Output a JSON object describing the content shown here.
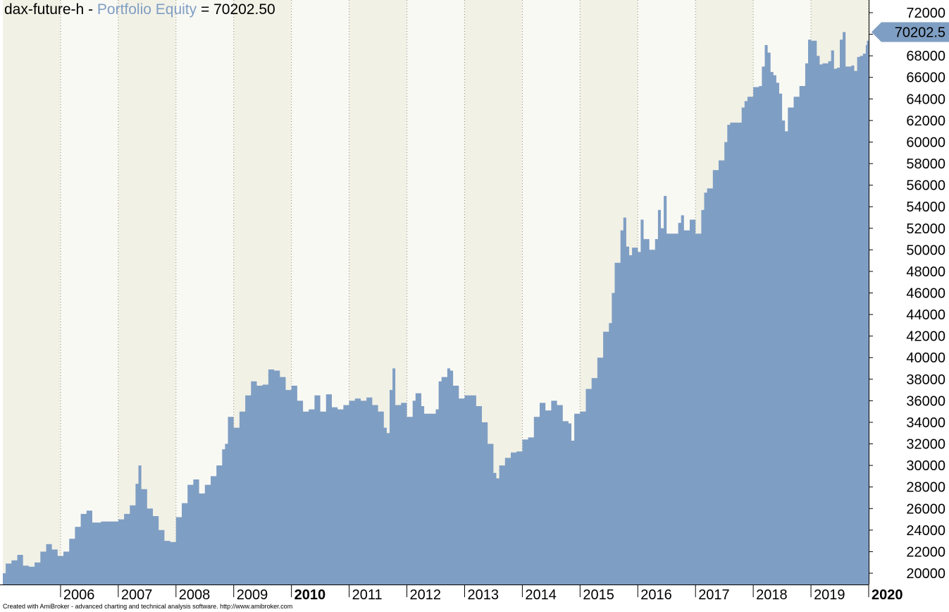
{
  "title": {
    "symbol": "dax-future-h",
    "sep": " - ",
    "series_label": "Portfolio Equity",
    "equals": " = ",
    "value": "70202.50"
  },
  "footer": "Created with AmiBroker - advanced charting and technical analysis software. http://www.amibroker.com",
  "colors": {
    "area": "#7f9ec3",
    "band_odd": "#f2f1e6",
    "band_even": "#f9f9f4",
    "axis_bg": "#ffffff"
  },
  "chart_data": {
    "type": "area",
    "series": [
      {
        "name": "Portfolio Equity",
        "last_label": "70202.5"
      }
    ],
    "ylim": [
      19000,
      73000
    ],
    "yticks": [
      20000,
      22000,
      24000,
      26000,
      28000,
      30000,
      32000,
      34000,
      36000,
      38000,
      40000,
      42000,
      44000,
      46000,
      48000,
      50000,
      52000,
      54000,
      56000,
      58000,
      60000,
      62000,
      64000,
      66000,
      68000,
      70000,
      72000
    ],
    "xlim": [
      2005.0,
      2020.0
    ],
    "xticks": [
      {
        "label": "2006",
        "x": 2006,
        "major": false
      },
      {
        "label": "2007",
        "x": 2007,
        "major": false
      },
      {
        "label": "2008",
        "x": 2008,
        "major": false
      },
      {
        "label": "2009",
        "x": 2009,
        "major": false
      },
      {
        "label": "2010",
        "x": 2010,
        "major": true
      },
      {
        "label": "2011",
        "x": 2011,
        "major": false
      },
      {
        "label": "2012",
        "x": 2012,
        "major": false
      },
      {
        "label": "2013",
        "x": 2013,
        "major": false
      },
      {
        "label": "2014",
        "x": 2014,
        "major": false
      },
      {
        "label": "2015",
        "x": 2015,
        "major": false
      },
      {
        "label": "2016",
        "x": 2016,
        "major": false
      },
      {
        "label": "2017",
        "x": 2017,
        "major": false
      },
      {
        "label": "2018",
        "x": 2018,
        "major": false
      },
      {
        "label": "2019",
        "x": 2019,
        "major": false
      },
      {
        "label": "2020",
        "x": 2020,
        "major": true
      }
    ],
    "points": [
      [
        2005.0,
        20000
      ],
      [
        2005.05,
        20900
      ],
      [
        2005.15,
        21200
      ],
      [
        2005.25,
        21700
      ],
      [
        2005.35,
        20700
      ],
      [
        2005.45,
        20600
      ],
      [
        2005.55,
        21000
      ],
      [
        2005.65,
        22000
      ],
      [
        2005.75,
        22700
      ],
      [
        2005.85,
        22200
      ],
      [
        2005.95,
        21600
      ],
      [
        2006.05,
        22000
      ],
      [
        2006.15,
        23200
      ],
      [
        2006.25,
        24300
      ],
      [
        2006.35,
        25500
      ],
      [
        2006.45,
        25800
      ],
      [
        2006.55,
        24700
      ],
      [
        2006.7,
        24800
      ],
      [
        2006.85,
        24800
      ],
      [
        2007.0,
        25000
      ],
      [
        2007.1,
        25500
      ],
      [
        2007.2,
        26300
      ],
      [
        2007.3,
        28300
      ],
      [
        2007.35,
        30000
      ],
      [
        2007.4,
        27800
      ],
      [
        2007.5,
        26000
      ],
      [
        2007.6,
        25300
      ],
      [
        2007.7,
        24000
      ],
      [
        2007.8,
        23000
      ],
      [
        2007.9,
        22900
      ],
      [
        2008.0,
        25200
      ],
      [
        2008.1,
        26500
      ],
      [
        2008.2,
        28200
      ],
      [
        2008.3,
        28700
      ],
      [
        2008.4,
        27400
      ],
      [
        2008.5,
        28200
      ],
      [
        2008.6,
        29000
      ],
      [
        2008.7,
        30000
      ],
      [
        2008.8,
        31500
      ],
      [
        2008.85,
        32000
      ],
      [
        2008.9,
        34500
      ],
      [
        2009.0,
        33500
      ],
      [
        2009.1,
        35000
      ],
      [
        2009.2,
        36500
      ],
      [
        2009.3,
        37800
      ],
      [
        2009.4,
        37400
      ],
      [
        2009.5,
        37500
      ],
      [
        2009.6,
        38900
      ],
      [
        2009.7,
        38800
      ],
      [
        2009.8,
        38200
      ],
      [
        2009.9,
        37000
      ],
      [
        2010.0,
        37400
      ],
      [
        2010.1,
        36000
      ],
      [
        2010.2,
        35000
      ],
      [
        2010.3,
        35200
      ],
      [
        2010.4,
        36500
      ],
      [
        2010.5,
        35000
      ],
      [
        2010.6,
        36600
      ],
      [
        2010.7,
        35400
      ],
      [
        2010.8,
        35200
      ],
      [
        2010.9,
        35600
      ],
      [
        2011.0,
        36000
      ],
      [
        2011.1,
        36200
      ],
      [
        2011.2,
        36000
      ],
      [
        2011.3,
        36300
      ],
      [
        2011.4,
        35600
      ],
      [
        2011.5,
        35000
      ],
      [
        2011.6,
        33500
      ],
      [
        2011.65,
        33000
      ],
      [
        2011.7,
        37000
      ],
      [
        2011.75,
        39000
      ],
      [
        2011.8,
        35600
      ],
      [
        2011.9,
        35800
      ],
      [
        2012.0,
        34500
      ],
      [
        2012.1,
        36000
      ],
      [
        2012.15,
        36700
      ],
      [
        2012.25,
        35500
      ],
      [
        2012.3,
        34800
      ],
      [
        2012.4,
        34800
      ],
      [
        2012.5,
        35200
      ],
      [
        2012.55,
        37800
      ],
      [
        2012.6,
        38200
      ],
      [
        2012.7,
        39000
      ],
      [
        2012.75,
        38800
      ],
      [
        2012.8,
        37400
      ],
      [
        2012.9,
        36200
      ],
      [
        2013.0,
        36500
      ],
      [
        2013.1,
        36500
      ],
      [
        2013.2,
        35500
      ],
      [
        2013.3,
        34000
      ],
      [
        2013.4,
        32000
      ],
      [
        2013.5,
        29300
      ],
      [
        2013.55,
        28800
      ],
      [
        2013.6,
        30000
      ],
      [
        2013.7,
        30700
      ],
      [
        2013.8,
        31200
      ],
      [
        2013.9,
        31300
      ],
      [
        2014.0,
        32400
      ],
      [
        2014.1,
        32600
      ],
      [
        2014.2,
        34500
      ],
      [
        2014.3,
        35800
      ],
      [
        2014.4,
        35100
      ],
      [
        2014.5,
        36000
      ],
      [
        2014.6,
        35600
      ],
      [
        2014.7,
        34100
      ],
      [
        2014.8,
        33900
      ],
      [
        2014.85,
        32300
      ],
      [
        2014.9,
        34800
      ],
      [
        2015.0,
        35000
      ],
      [
        2015.1,
        37100
      ],
      [
        2015.2,
        38100
      ],
      [
        2015.3,
        40000
      ],
      [
        2015.4,
        42400
      ],
      [
        2015.5,
        43200
      ],
      [
        2015.55,
        46000
      ],
      [
        2015.6,
        48800
      ],
      [
        2015.7,
        51800
      ],
      [
        2015.75,
        53000
      ],
      [
        2015.8,
        50300
      ],
      [
        2015.85,
        49500
      ],
      [
        2015.9,
        50200
      ],
      [
        2016.0,
        49800
      ],
      [
        2016.05,
        52800
      ],
      [
        2016.1,
        51000
      ],
      [
        2016.2,
        50000
      ],
      [
        2016.3,
        51000
      ],
      [
        2016.35,
        53700
      ],
      [
        2016.4,
        52000
      ],
      [
        2016.45,
        55000
      ],
      [
        2016.5,
        51500
      ],
      [
        2016.6,
        51500
      ],
      [
        2016.7,
        52500
      ],
      [
        2016.75,
        53200
      ],
      [
        2016.8,
        51800
      ],
      [
        2016.9,
        52800
      ],
      [
        2017.0,
        51500
      ],
      [
        2017.1,
        53700
      ],
      [
        2017.15,
        55300
      ],
      [
        2017.2,
        55700
      ],
      [
        2017.3,
        57400
      ],
      [
        2017.4,
        58300
      ],
      [
        2017.5,
        60000
      ],
      [
        2017.55,
        61600
      ],
      [
        2017.6,
        61800
      ],
      [
        2017.7,
        61800
      ],
      [
        2017.8,
        63200
      ],
      [
        2017.85,
        63800
      ],
      [
        2017.9,
        64200
      ],
      [
        2018.0,
        65100
      ],
      [
        2018.1,
        65200
      ],
      [
        2018.15,
        67000
      ],
      [
        2018.2,
        69000
      ],
      [
        2018.25,
        68300
      ],
      [
        2018.3,
        66500
      ],
      [
        2018.35,
        66200
      ],
      [
        2018.4,
        65500
      ],
      [
        2018.45,
        64500
      ],
      [
        2018.5,
        62000
      ],
      [
        2018.55,
        61000
      ],
      [
        2018.6,
        63200
      ],
      [
        2018.7,
        64200
      ],
      [
        2018.8,
        65200
      ],
      [
        2018.9,
        67300
      ],
      [
        2018.95,
        69500
      ],
      [
        2019.0,
        69400
      ],
      [
        2019.1,
        68000
      ],
      [
        2019.15,
        67200
      ],
      [
        2019.2,
        67300
      ],
      [
        2019.3,
        67500
      ],
      [
        2019.35,
        68500
      ],
      [
        2019.4,
        66800
      ],
      [
        2019.45,
        66900
      ],
      [
        2019.5,
        69500
      ],
      [
        2019.55,
        70200
      ],
      [
        2019.6,
        67000
      ],
      [
        2019.7,
        67100
      ],
      [
        2019.75,
        66600
      ],
      [
        2019.8,
        67900
      ],
      [
        2019.85,
        68000
      ],
      [
        2019.9,
        68200
      ],
      [
        2019.95,
        69000
      ],
      [
        2019.97,
        69400
      ],
      [
        2020.0,
        70202.5
      ]
    ]
  }
}
